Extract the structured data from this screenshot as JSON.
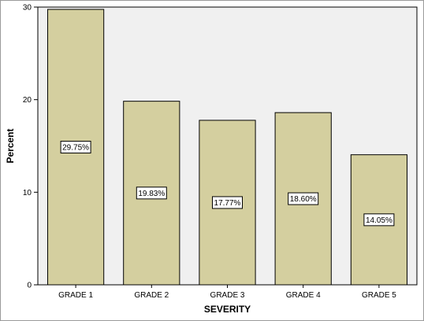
{
  "chart_data": {
    "type": "bar",
    "categories": [
      "GRADE 1",
      "GRADE 2",
      "GRADE 3",
      "GRADE 4",
      "GRADE 5"
    ],
    "values": [
      29.75,
      19.83,
      17.77,
      18.6,
      14.05
    ],
    "data_labels": [
      "29.75%",
      "19.83%",
      "17.77%",
      "18.60%",
      "14.05%"
    ],
    "xlabel": "SEVERITY",
    "ylabel": "Percent",
    "ylim": [
      0,
      30
    ],
    "yticks": [
      0,
      10,
      20,
      30
    ],
    "grid": false,
    "legend": "none",
    "colors": {
      "bar_fill": "#d4cf9f",
      "bar_stroke": "#000000",
      "plot_background": "#f0f0f0"
    }
  }
}
